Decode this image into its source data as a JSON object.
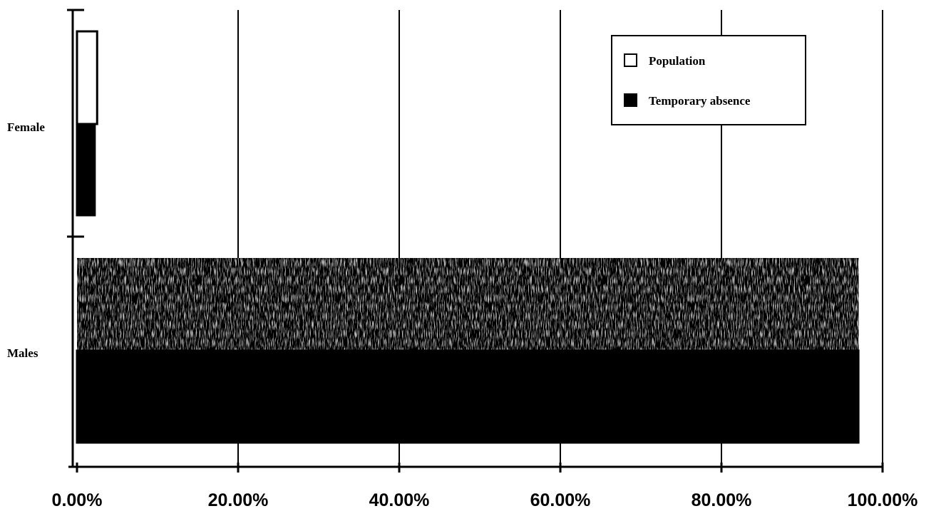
{
  "chart_data": {
    "type": "bar",
    "orientation": "horizontal",
    "categories": [
      "Female",
      "Males"
    ],
    "series": [
      {
        "name": "Population",
        "values": [
          2.5,
          97
        ],
        "color": "#ffffff"
      },
      {
        "name": "Temporary absence",
        "values": [
          2.2,
          97
        ],
        "color": "#000000"
      }
    ],
    "xlim": [
      0,
      100
    ],
    "x_ticks": [
      "0.00%",
      "20.00%",
      "40.00%",
      "60.00%",
      "80.00%",
      "100.00%"
    ],
    "grid": true,
    "legend_position": "top-right",
    "title": "",
    "xlabel": "",
    "ylabel": ""
  }
}
